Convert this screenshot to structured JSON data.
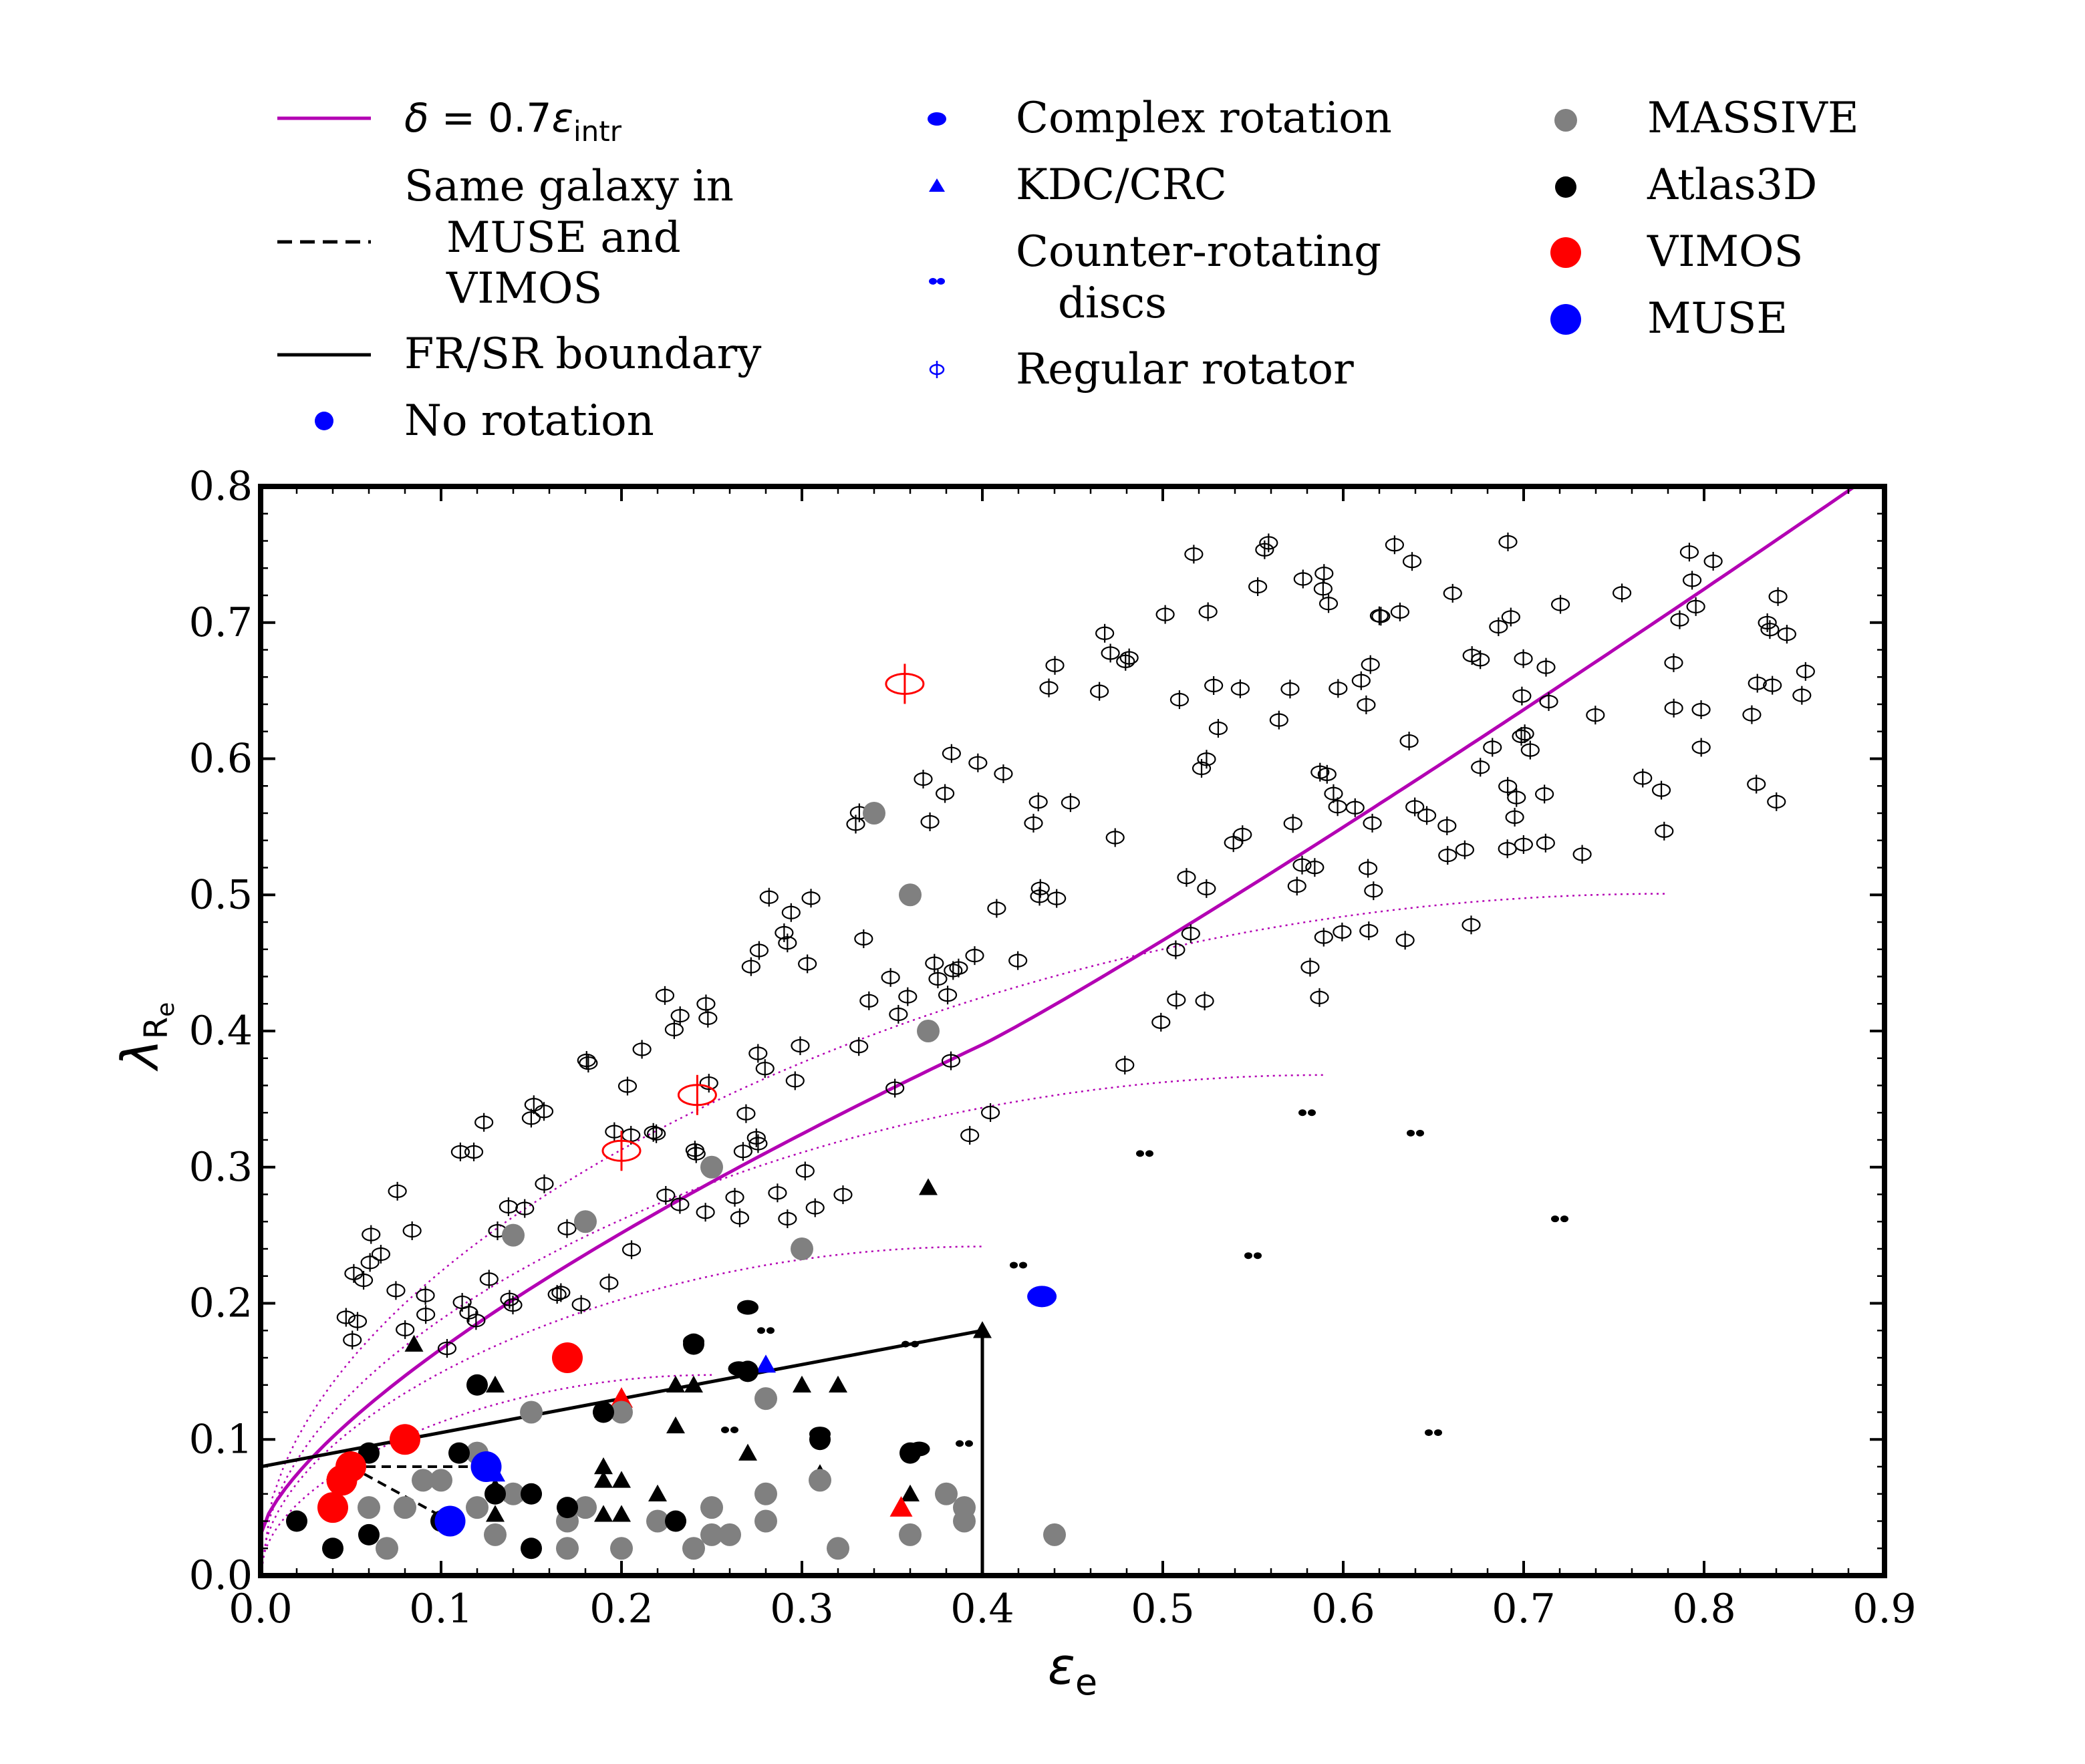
{
  "chart_data": {
    "type": "scatter",
    "xlabel": "ε",
    "xlabel_sub": "e",
    "ylabel": "λ",
    "ylabel_sub": "R",
    "ylabel_subsub": "e",
    "xlim": [
      0.0,
      0.9
    ],
    "ylim": [
      0.0,
      0.8
    ],
    "x_ticks": [
      "0.0",
      "0.1",
      "0.2",
      "0.3",
      "0.4",
      "0.5",
      "0.6",
      "0.7",
      "0.8",
      "0.9"
    ],
    "y_ticks": [
      "0.0",
      "0.1",
      "0.2",
      "0.3",
      "0.4",
      "0.5",
      "0.6",
      "0.7",
      "0.8"
    ],
    "legend": {
      "placement": "top",
      "col1": [
        {
          "key": "delta",
          "parts": [
            "δ",
            " = 0.7",
            "ε",
            "intr"
          ]
        },
        {
          "key": "same",
          "lines": [
            "Same galaxy in",
            "MUSE and",
            "VIMOS"
          ]
        },
        {
          "key": "frsr",
          "lines": [
            "FR/SR boundary"
          ]
        },
        {
          "key": "norot",
          "lines": [
            "No rotation"
          ]
        }
      ],
      "col2": [
        {
          "key": "complex",
          "lines": [
            "Complex rotation"
          ]
        },
        {
          "key": "kdc",
          "lines": [
            "KDC/CRC"
          ]
        },
        {
          "key": "counter",
          "lines": [
            "Counter-rotating",
            "discs"
          ]
        },
        {
          "key": "regular",
          "lines": [
            "Regular rotator"
          ]
        }
      ],
      "col3": [
        {
          "key": "massive",
          "lines": [
            "MASSIVE"
          ]
        },
        {
          "key": "atlas",
          "lines": [
            "Atlas3D"
          ]
        },
        {
          "key": "vimos",
          "lines": [
            "VIMOS"
          ]
        },
        {
          "key": "muse",
          "lines": [
            "MUSE"
          ]
        }
      ]
    },
    "colors": {
      "magenta": "#b300b3",
      "massive": "#808080",
      "atlas": "#000000",
      "vimos": "#ff0000",
      "muse": "#0000ff"
    },
    "lines": {
      "delta_curve": "δ = 0.7ε_intr",
      "frsr_boundary": [
        [
          0.0,
          0.08
        ],
        [
          0.4,
          0.18
        ],
        [
          0.4,
          0.0
        ]
      ]
    },
    "series": [
      {
        "name": "MASSIVE",
        "points": [
          [
            0.34,
            0.56
          ],
          [
            0.36,
            0.5
          ],
          [
            0.37,
            0.4
          ],
          [
            0.25,
            0.3
          ],
          [
            0.18,
            0.26
          ],
          [
            0.14,
            0.25
          ],
          [
            0.3,
            0.24
          ],
          [
            0.28,
            0.13
          ],
          [
            0.12,
            0.09
          ],
          [
            0.2,
            0.12
          ],
          [
            0.15,
            0.12
          ],
          [
            0.09,
            0.07
          ],
          [
            0.1,
            0.07
          ],
          [
            0.14,
            0.06
          ],
          [
            0.31,
            0.07
          ],
          [
            0.08,
            0.05
          ],
          [
            0.06,
            0.05
          ],
          [
            0.25,
            0.05
          ],
          [
            0.28,
            0.06
          ],
          [
            0.38,
            0.06
          ],
          [
            0.39,
            0.05
          ],
          [
            0.17,
            0.04
          ],
          [
            0.22,
            0.04
          ],
          [
            0.28,
            0.04
          ],
          [
            0.39,
            0.04
          ],
          [
            0.13,
            0.03
          ],
          [
            0.25,
            0.03
          ],
          [
            0.26,
            0.03
          ],
          [
            0.36,
            0.03
          ],
          [
            0.44,
            0.03
          ],
          [
            0.07,
            0.02
          ],
          [
            0.17,
            0.02
          ],
          [
            0.2,
            0.02
          ],
          [
            0.24,
            0.02
          ],
          [
            0.32,
            0.02
          ],
          [
            0.18,
            0.05
          ],
          [
            0.12,
            0.05
          ]
        ]
      },
      {
        "name": "Atlas3D",
        "points": [
          [
            0.12,
            0.14
          ],
          [
            0.06,
            0.09
          ],
          [
            0.11,
            0.09
          ],
          [
            0.02,
            0.04
          ],
          [
            0.06,
            0.03
          ],
          [
            0.1,
            0.04
          ],
          [
            0.04,
            0.02
          ],
          [
            0.15,
            0.02
          ],
          [
            0.24,
            0.17
          ],
          [
            0.27,
            0.15
          ],
          [
            0.19,
            0.12
          ],
          [
            0.31,
            0.1
          ],
          [
            0.36,
            0.09
          ],
          [
            0.15,
            0.06
          ],
          [
            0.23,
            0.04
          ],
          [
            0.13,
            0.06
          ],
          [
            0.17,
            0.05
          ]
        ]
      },
      {
        "name": "VIMOS",
        "points": [
          [
            0.08,
            0.1
          ],
          [
            0.05,
            0.08
          ],
          [
            0.045,
            0.07
          ],
          [
            0.04,
            0.05
          ],
          [
            0.17,
            0.16
          ]
        ]
      },
      {
        "name": "MUSE",
        "points": [
          [
            0.125,
            0.08
          ],
          [
            0.105,
            0.04
          ],
          [
            0.433,
            0.205
          ]
        ]
      }
    ]
  }
}
